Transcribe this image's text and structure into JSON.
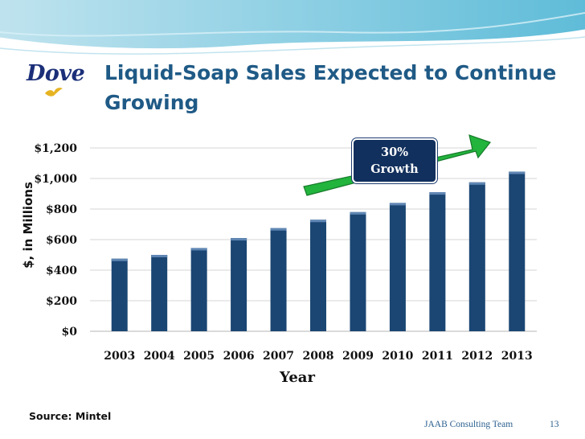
{
  "slide": {
    "title": "Liquid-Soap Sales Expected to Continue Growing",
    "logo_text": "Dove",
    "source": "Source: Mintel",
    "footer_team": "JAAB Consulting Team",
    "slide_number": "13",
    "callout": {
      "line1": "30%",
      "line2": "Growth"
    }
  },
  "colors": {
    "bar": "#1b4673",
    "title": "#1f5a86",
    "arrow": "#1fb53a",
    "callout_bg": "#12305d"
  },
  "chart_data": {
    "type": "bar",
    "categories": [
      "2003",
      "2004",
      "2005",
      "2006",
      "2007",
      "2008",
      "2009",
      "2010",
      "2011",
      "2012",
      "2013"
    ],
    "values": [
      475,
      500,
      545,
      610,
      675,
      730,
      780,
      840,
      910,
      975,
      1045
    ],
    "xlabel": "Year",
    "ylabel": "$, in Millions",
    "ylim": [
      0,
      1200
    ],
    "yticks": [
      0,
      200,
      400,
      600,
      800,
      1000,
      1200
    ],
    "ytick_labels": [
      "$0",
      "$200",
      "$400",
      "$600",
      "$800",
      "$1,000",
      "$1,200"
    ],
    "grid": true,
    "legend": "none",
    "annotation": "30% Growth"
  }
}
